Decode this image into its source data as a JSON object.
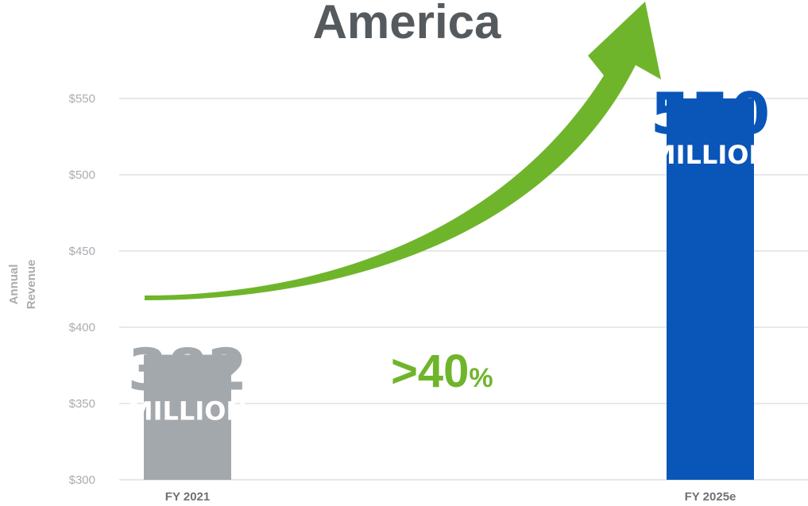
{
  "chart_data": {
    "type": "bar",
    "title": "America",
    "ylabel": "Annual Revenue",
    "ylabel_lines": [
      "Annual",
      "Revenue"
    ],
    "categories": [
      "FY 2021",
      "FY 2025e"
    ],
    "values": [
      382,
      550
    ],
    "value_labels": [
      {
        "number": "382",
        "unit": "MILLION"
      },
      {
        "number": "550",
        "unit": "MILLION"
      }
    ],
    "bar_colors": [
      "#a3a8ad",
      "#0a55b8"
    ],
    "ylim": [
      300,
      550
    ],
    "yticks": [
      300,
      350,
      400,
      450,
      500,
      550
    ],
    "ytick_labels": [
      "$300",
      "$350",
      "$400",
      "$450",
      "$500",
      "$550"
    ],
    "grid": true,
    "annotation": {
      "text": ">40",
      "suffix": "%",
      "color": "#6fb52c"
    },
    "arrow_color": "#6fb52c"
  }
}
